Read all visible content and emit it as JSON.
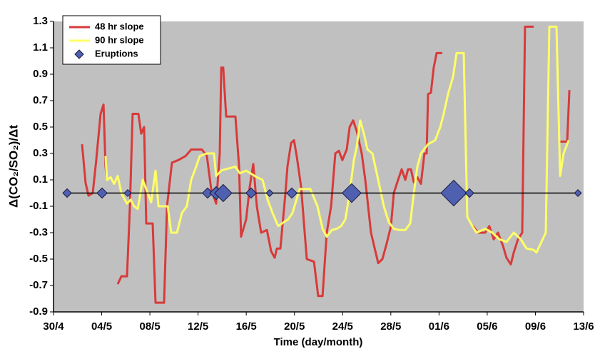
{
  "chart_data": {
    "type": "line",
    "xlabel": "Time (day/month)",
    "ylabel": "Δ(CO₂/SO₂)/Δt",
    "xlim": [
      0,
      44
    ],
    "ylim": [
      -0.9,
      1.3
    ],
    "xticks": [
      {
        "value": 0,
        "label": "30/4"
      },
      {
        "value": 4,
        "label": "04/5"
      },
      {
        "value": 8,
        "label": "08/5"
      },
      {
        "value": 12,
        "label": "12/5"
      },
      {
        "value": 16,
        "label": "16/5"
      },
      {
        "value": 20,
        "label": "20/5"
      },
      {
        "value": 24,
        "label": "24/5"
      },
      {
        "value": 28,
        "label": "28/5"
      },
      {
        "value": 32,
        "label": "01/6"
      },
      {
        "value": 36,
        "label": "05/6"
      },
      {
        "value": 40,
        "label": "09/6"
      },
      {
        "value": 44,
        "label": "13/6"
      }
    ],
    "yticks": [
      -0.9,
      -0.7,
      -0.5,
      -0.3,
      -0.1,
      0.1,
      0.3,
      0.5,
      0.7,
      0.9,
      1.1,
      1.3
    ],
    "grid": false,
    "legend": "upper left",
    "background": "#c0c0c0",
    "series": [
      {
        "name": "48 hr slope",
        "color": "#d83a3a",
        "x": [
          2.37,
          2.66,
          2.9,
          3.26,
          3.55,
          3.91,
          4.15,
          4.32,
          4.44,
          4.9,
          5.33,
          5.63,
          6.1,
          6.34,
          6.57,
          7.05,
          7.28,
          7.52,
          7.7,
          8.23,
          8.47,
          9.18,
          9.42,
          9.83,
          10.36,
          10.96,
          11.43,
          12.32,
          12.73,
          13.09,
          13.5,
          13.8,
          13.92,
          14.09,
          14.33,
          15.1,
          15.4,
          15.57,
          15.99,
          16.29,
          16.58,
          16.88,
          17.23,
          17.71,
          18.06,
          18.36,
          18.54,
          18.83,
          19.25,
          19.42,
          19.72,
          19.96,
          20.19,
          20.55,
          21.02,
          21.62,
          21.97,
          22.33,
          22.68,
          23.04,
          23.39,
          23.69,
          23.98,
          24.34,
          24.58,
          24.87,
          25.17,
          25.58,
          25.88,
          26.35,
          26.95,
          27.3,
          27.66,
          28.01,
          28.25,
          28.6,
          28.9,
          29.2,
          29.43,
          29.67,
          29.91,
          30.2,
          30.5,
          30.79,
          30.97,
          31.09,
          31.33,
          31.56,
          31.8,
          32.27,
          33,
          34.82,
          35.24,
          35.83,
          36.18,
          36.54,
          36.89,
          37.31,
          37.6,
          37.96,
          38.2,
          38.55,
          38.91,
          39.14,
          39.86,
          41,
          42.05,
          42.64,
          42.82
        ],
        "values": [
          0.37,
          0.08,
          -0.02,
          0.0,
          0.25,
          0.6,
          0.67,
          0.2,
          0.1,
          null,
          -0.69,
          -0.63,
          -0.63,
          -0.1,
          0.6,
          0.6,
          0.45,
          0.5,
          -0.23,
          -0.23,
          -0.83,
          -0.83,
          -0.1,
          0.23,
          0.25,
          0.28,
          0.33,
          0.33,
          0.28,
          0.03,
          -0.08,
          0.3,
          0.95,
          0.95,
          0.58,
          0.58,
          0.2,
          -0.33,
          -0.2,
          0.05,
          0.22,
          -0.1,
          -0.3,
          -0.28,
          -0.44,
          -0.49,
          -0.42,
          -0.42,
          0.0,
          0.2,
          0.38,
          0.4,
          0.28,
          0.05,
          -0.5,
          -0.52,
          -0.78,
          -0.78,
          -0.3,
          -0.1,
          0.3,
          0.32,
          0.25,
          0.33,
          0.5,
          0.55,
          0.47,
          0.3,
          0.1,
          -0.3,
          -0.53,
          -0.5,
          -0.38,
          -0.25,
          0.0,
          0.1,
          0.18,
          0.1,
          0.18,
          0.18,
          0.08,
          0.12,
          0.07,
          0.3,
          0.3,
          0.75,
          0.76,
          0.95,
          1.06,
          1.06,
          null,
          -0.25,
          -0.3,
          -0.3,
          -0.25,
          -0.35,
          -0.3,
          -0.4,
          -0.49,
          -0.54,
          -0.45,
          -0.35,
          -0.3,
          1.26,
          1.26,
          null,
          0.39,
          0.39,
          0.78
        ]
      },
      {
        "name": "90 hr slope",
        "color": "#ffff66",
        "x": [
          4.32,
          4.44,
          4.74,
          5.03,
          5.33,
          5.63,
          6.1,
          6.4,
          6.69,
          6.99,
          7.4,
          7.7,
          8.11,
          8.47,
          8.71,
          9.48,
          9.77,
          10.25,
          10.66,
          11.07,
          11.43,
          11.84,
          12.14,
          12.73,
          13.32,
          13.5,
          13.92,
          14.27,
          15.1,
          15.46,
          15.99,
          16.88,
          17.35,
          17.77,
          18.18,
          18.65,
          19.13,
          19.48,
          19.84,
          20.43,
          21.32,
          21.91,
          22.33,
          22.68,
          23.1,
          23.51,
          23.87,
          24.22,
          24.58,
          24.93,
          25.17,
          25.46,
          25.76,
          26.06,
          26.47,
          26.95,
          27.42,
          27.83,
          28.25,
          28.72,
          29.2,
          29.61,
          29.91,
          30.2,
          30.5,
          31.09,
          31.68,
          32.1,
          32.39,
          32.75,
          33.16,
          33.46,
          34.05,
          34.35,
          34.76,
          35.12,
          35.83,
          36.42,
          37.01,
          37.6,
          38.2,
          38.79,
          39.26,
          39.86,
          40.09,
          40.45,
          40.86,
          41.16,
          41.75,
          42.05,
          42.34,
          42.76
        ],
        "values": [
          0.28,
          0.1,
          0.12,
          0.07,
          0.13,
          0.0,
          -0.08,
          -0.05,
          -0.1,
          -0.12,
          0.1,
          0.03,
          -0.07,
          0.17,
          -0.1,
          -0.1,
          -0.3,
          -0.3,
          -0.15,
          -0.1,
          0.1,
          0.2,
          0.28,
          0.3,
          0.3,
          0.13,
          0.17,
          0.18,
          0.2,
          0.15,
          0.17,
          0.12,
          0.1,
          -0.05,
          -0.15,
          -0.25,
          -0.22,
          -0.2,
          -0.15,
          0.03,
          0.03,
          -0.1,
          -0.27,
          -0.33,
          -0.28,
          -0.27,
          -0.25,
          -0.2,
          0.0,
          0.25,
          0.35,
          0.55,
          0.45,
          0.33,
          0.3,
          0.1,
          -0.1,
          -0.22,
          -0.27,
          -0.28,
          -0.28,
          -0.23,
          0.0,
          0.2,
          0.3,
          0.37,
          0.4,
          0.5,
          0.6,
          0.75,
          0.88,
          1.06,
          1.06,
          -0.18,
          -0.25,
          -0.3,
          -0.27,
          -0.3,
          -0.35,
          -0.37,
          -0.3,
          -0.35,
          -0.42,
          -0.43,
          -0.45,
          -0.38,
          -0.3,
          1.26,
          1.26,
          0.13,
          0.3,
          0.4
        ]
      },
      {
        "name": "Eruptions",
        "color": "#5060b0",
        "marker": "diamond",
        "x": [
          1.13,
          4.03,
          6.16,
          12.79,
          13.5,
          14.09,
          16.4,
          17.94,
          19.78,
          24.75,
          33.22,
          34.53,
          43.53
        ],
        "values": [
          0,
          0,
          0,
          0,
          0,
          0,
          0,
          0,
          0,
          0,
          0,
          0,
          0
        ],
        "sizes": [
          1,
          1.2,
          0.8,
          1.2,
          1.5,
          2,
          1.2,
          0.8,
          1.2,
          2.2,
          3,
          1,
          0.8
        ]
      }
    ]
  }
}
